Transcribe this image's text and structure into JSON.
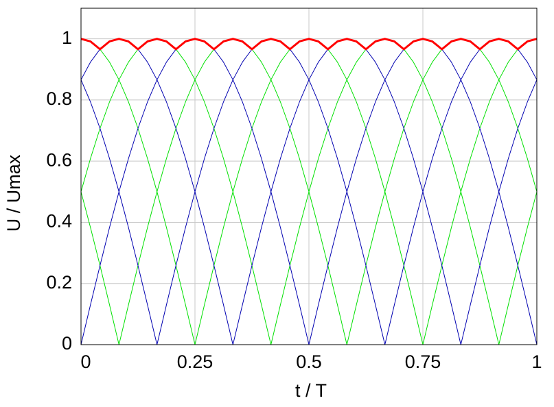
{
  "chart_data": {
    "type": "line",
    "x_label": "t / T",
    "y_label": "U / Umax",
    "xlim": [
      0,
      1
    ],
    "ylim": [
      0,
      1.1
    ],
    "xticks": [
      0,
      0.25,
      0.5,
      0.75,
      1
    ],
    "yticks": [
      0,
      0.2,
      0.4,
      0.6,
      0.8,
      1
    ],
    "grid": true,
    "x": [
      0,
      0.0208,
      0.0417,
      0.0625,
      0.0833,
      0.1042,
      0.125,
      0.1458,
      0.1667,
      0.1875,
      0.2083,
      0.2292,
      0.25,
      0.2708,
      0.2917,
      0.3125,
      0.3333,
      0.3542,
      0.375,
      0.3958,
      0.4167,
      0.4375,
      0.4583,
      0.4792,
      0.5,
      0.5208,
      0.5417,
      0.5625,
      0.5833,
      0.6042,
      0.625,
      0.6458,
      0.6667,
      0.6875,
      0.7083,
      0.7292,
      0.75,
      0.7708,
      0.7917,
      0.8125,
      0.8333,
      0.8542,
      0.875,
      0.8958,
      0.9167,
      0.9375,
      0.9583,
      0.9792,
      1
    ],
    "series": [
      {
        "color": "#00e000",
        "width": 1,
        "values": [
          0.5,
          0.3827,
          0.2588,
          0.1305,
          0,
          0.1305,
          0.2588,
          0.3827,
          0.5,
          0.6088,
          0.7071,
          0.7934,
          0.866,
          0.9239,
          0.9659,
          0.9914,
          1,
          0.9914,
          0.9659,
          0.9239,
          0.866,
          0.7934,
          0.7071,
          0.6088,
          0.5,
          0.3827,
          0.2588,
          0.1305,
          0,
          0.1305,
          0.2588,
          0.3827,
          0.5,
          0.6088,
          0.7071,
          0.7934,
          0.866,
          0.9239,
          0.9659,
          0.9914,
          1,
          0.9914,
          0.9659,
          0.9239,
          0.866,
          0.7934,
          0.7071,
          0.6088,
          0.5
        ]
      },
      {
        "color": "#00e000",
        "width": 1,
        "values": [
          1,
          0.9914,
          0.9659,
          0.9239,
          0.866,
          0.7934,
          0.7071,
          0.6088,
          0.5,
          0.3827,
          0.2588,
          0.1305,
          0,
          0.1305,
          0.2588,
          0.3827,
          0.5,
          0.6088,
          0.7071,
          0.7934,
          0.866,
          0.9239,
          0.9659,
          0.9914,
          1,
          0.9914,
          0.9659,
          0.9239,
          0.866,
          0.7934,
          0.7071,
          0.6088,
          0.5,
          0.3827,
          0.2588,
          0.1305,
          0,
          0.1305,
          0.2588,
          0.3827,
          0.5,
          0.6088,
          0.7071,
          0.7934,
          0.866,
          0.9239,
          0.9659,
          0.9914,
          1
        ]
      },
      {
        "color": "#00e000",
        "width": 1,
        "values": [
          0.5,
          0.6088,
          0.7071,
          0.7934,
          0.866,
          0.9239,
          0.9659,
          0.9914,
          1,
          0.9914,
          0.9659,
          0.9239,
          0.866,
          0.7934,
          0.7071,
          0.6088,
          0.5,
          0.3827,
          0.2588,
          0.1305,
          0,
          0.1305,
          0.2588,
          0.3827,
          0.5,
          0.6088,
          0.7071,
          0.7934,
          0.866,
          0.9239,
          0.9659,
          0.9914,
          1,
          0.9914,
          0.9659,
          0.9239,
          0.866,
          0.7934,
          0.7071,
          0.6088,
          0.5,
          0.3827,
          0.2588,
          0.1305,
          0,
          0.1305,
          0.2588,
          0.3827,
          0.5
        ]
      },
      {
        "color": "#0000b0",
        "width": 1,
        "values": [
          0,
          0.1305,
          0.2588,
          0.3827,
          0.5,
          0.6088,
          0.7071,
          0.7934,
          0.866,
          0.9239,
          0.9659,
          0.9914,
          1,
          0.9914,
          0.9659,
          0.9239,
          0.866,
          0.7934,
          0.7071,
          0.6088,
          0.5,
          0.3827,
          0.2588,
          0.1305,
          0,
          0.1305,
          0.2588,
          0.3827,
          0.5,
          0.6088,
          0.7071,
          0.7934,
          0.866,
          0.9239,
          0.9659,
          0.9914,
          1,
          0.9914,
          0.9659,
          0.9239,
          0.866,
          0.7934,
          0.7071,
          0.6088,
          0.5,
          0.3827,
          0.2588,
          0.1305,
          0
        ]
      },
      {
        "color": "#0000b0",
        "width": 1,
        "values": [
          0.866,
          0.7934,
          0.7071,
          0.6088,
          0.5,
          0.3827,
          0.2588,
          0.1305,
          0,
          0.1305,
          0.2588,
          0.3827,
          0.5,
          0.6088,
          0.7071,
          0.7934,
          0.866,
          0.9239,
          0.9659,
          0.9914,
          1,
          0.9914,
          0.9659,
          0.9239,
          0.866,
          0.7934,
          0.7071,
          0.6088,
          0.5,
          0.3827,
          0.2588,
          0.1305,
          0,
          0.1305,
          0.2588,
          0.3827,
          0.5,
          0.6088,
          0.7071,
          0.7934,
          0.866,
          0.9239,
          0.9659,
          0.9914,
          1,
          0.9914,
          0.9659,
          0.9239,
          0.866
        ]
      },
      {
        "color": "#0000b0",
        "width": 1,
        "values": [
          0.866,
          0.9239,
          0.9659,
          0.9914,
          1,
          0.9914,
          0.9659,
          0.9239,
          0.866,
          0.7934,
          0.7071,
          0.6088,
          0.5,
          0.3827,
          0.2588,
          0.1305,
          0,
          0.1305,
          0.2588,
          0.3827,
          0.5,
          0.6088,
          0.7071,
          0.7934,
          0.866,
          0.9239,
          0.9659,
          0.9914,
          1,
          0.9914,
          0.9659,
          0.9239,
          0.866,
          0.7934,
          0.7071,
          0.6088,
          0.5,
          0.3827,
          0.2588,
          0.1305,
          0,
          0.1305,
          0.2588,
          0.3827,
          0.5,
          0.6088,
          0.7071,
          0.7934,
          0.866
        ]
      },
      {
        "color": "#ff0000",
        "width": 3,
        "values": [
          1,
          0.9914,
          0.9659,
          0.9914,
          1,
          0.9914,
          0.9659,
          0.9914,
          1,
          0.9914,
          0.9659,
          0.9914,
          1,
          0.9914,
          0.9659,
          0.9914,
          1,
          0.9914,
          0.9659,
          0.9914,
          1,
          0.9914,
          0.9659,
          0.9914,
          1,
          0.9914,
          0.9659,
          0.9914,
          1,
          0.9914,
          0.9659,
          0.9914,
          1,
          0.9914,
          0.9659,
          0.9914,
          1,
          0.9914,
          0.9659,
          0.9914,
          1,
          0.9914,
          0.9659,
          0.9914,
          1,
          0.9914,
          0.9659,
          0.9914,
          1
        ]
      }
    ]
  }
}
